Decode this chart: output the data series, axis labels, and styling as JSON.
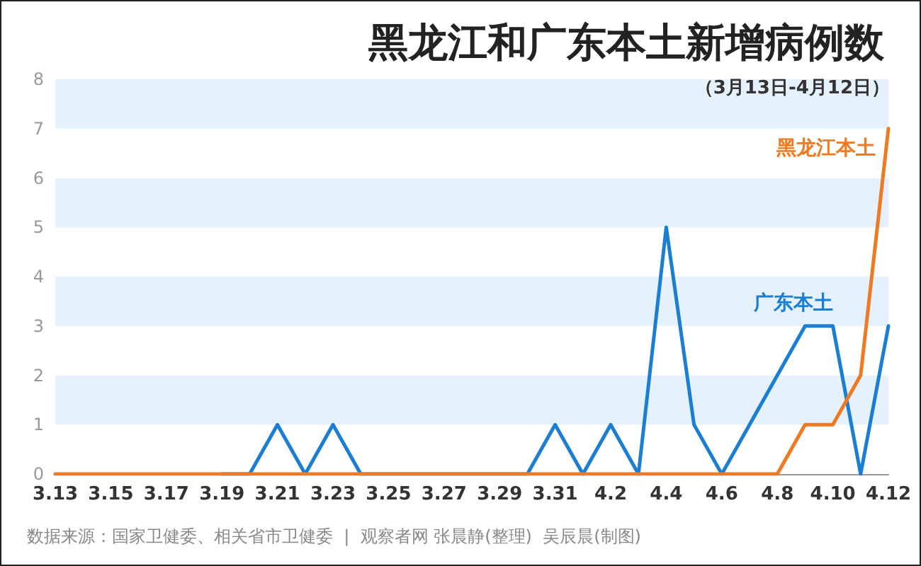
{
  "chart_data": {
    "type": "line",
    "title": "黑龙江和广东本土新增病例数",
    "subtitle": "（3月13日-4月12日）",
    "categories": [
      "3.13",
      null,
      "3.15",
      null,
      "3.17",
      null,
      "3.19",
      null,
      "3.21",
      null,
      "3.23",
      null,
      "3.25",
      null,
      "3.27",
      null,
      "3.29",
      null,
      "3.31",
      null,
      "4.2",
      null,
      "4.4",
      null,
      "4.6",
      null,
      "4.8",
      null,
      "4.10",
      null,
      "4.12"
    ],
    "series": [
      {
        "name": "广东本土",
        "color": "#1a7fd4",
        "values": [
          null,
          null,
          null,
          null,
          null,
          null,
          0,
          0,
          1,
          0,
          1,
          0,
          0,
          0,
          0,
          0,
          0,
          0,
          1,
          0,
          1,
          0,
          5,
          1,
          0,
          1,
          2,
          3,
          3,
          0,
          3
        ]
      },
      {
        "name": "黑龙江本土",
        "color": "#f07a22",
        "values": [
          0,
          0,
          0,
          0,
          0,
          0,
          0,
          0,
          0,
          0,
          0,
          0,
          0,
          0,
          0,
          0,
          0,
          0,
          0,
          0,
          0,
          0,
          0,
          0,
          0,
          0,
          0,
          1,
          1,
          2,
          7
        ]
      }
    ],
    "ylim": [
      0,
      8
    ],
    "yticks": [
      0,
      1,
      2,
      3,
      4,
      5,
      6,
      7,
      8
    ],
    "marker": "none",
    "line_style": "solid",
    "legend": false,
    "annotations": [
      "数据来源：国家卫健委、相关省市卫健委  |  观察者网 张晨静(整理)  吴辰晨(制图)"
    ]
  }
}
